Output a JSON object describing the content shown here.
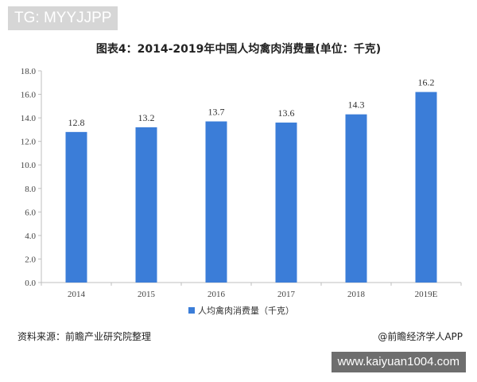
{
  "overlay": {
    "tg_label": "TG: MYYJJPP",
    "url_label": "www.kaiyuan1004.com"
  },
  "footer": {
    "source": "资料来源：前瞻产业研究院整理",
    "credit": "@前瞻经济学人APP"
  },
  "colors": {
    "bar": "#3B7DD8",
    "axis": "#bfbfbf"
  },
  "chart_data": {
    "type": "bar",
    "title": "图表4：2014-2019年中国人均禽肉消费量(单位：千克)",
    "categories": [
      "2014",
      "2015",
      "2016",
      "2017",
      "2018",
      "2019E"
    ],
    "series": [
      {
        "name": "人均禽肉消费量（千克）",
        "values": [
          12.8,
          13.2,
          13.7,
          13.6,
          14.3,
          16.2
        ]
      }
    ],
    "value_labels": [
      "12.8",
      "13.2",
      "13.7",
      "13.6",
      "14.3",
      "16.2"
    ],
    "ylim": [
      0,
      18
    ],
    "yticks": [
      "0.0",
      "2.0",
      "4.0",
      "6.0",
      "8.0",
      "10.0",
      "12.0",
      "14.0",
      "16.0",
      "18.0"
    ],
    "grid": false,
    "legend_position": "bottom"
  }
}
